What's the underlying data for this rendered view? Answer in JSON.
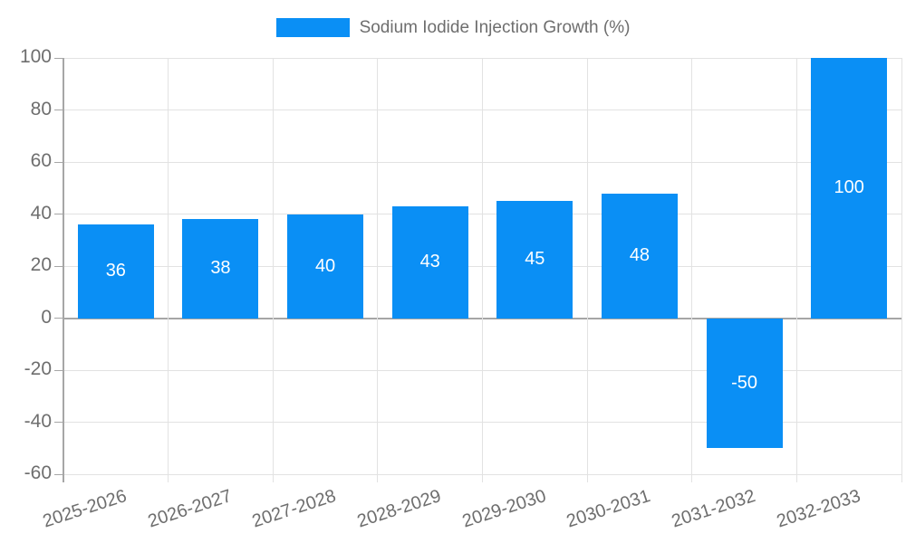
{
  "chart_data": {
    "type": "bar",
    "title": "Sodium Iodide Injection Growth (%)",
    "categories": [
      "2025-2026",
      "2026-2027",
      "2027-2028",
      "2028-2029",
      "2029-2030",
      "2030-2031",
      "2031-2032",
      "2032-2033"
    ],
    "values": [
      36,
      38,
      40,
      43,
      45,
      48,
      -50,
      100
    ],
    "bar_labels": [
      "36",
      "38",
      "40",
      "43",
      "45",
      "48",
      "-50",
      "100"
    ],
    "xlabel": "",
    "ylabel": "",
    "ylim": [
      -60,
      100
    ],
    "yticks": [
      -60,
      -40,
      -20,
      0,
      20,
      40,
      60,
      80,
      100
    ],
    "grid": "both",
    "legend_position": "top",
    "x_label_rotation_deg": -18
  },
  "legend": {
    "label": "Sodium Iodide Injection Growth (%)"
  },
  "colors": {
    "bar": "#0a8ff5",
    "bar_label_text": "#ffffff",
    "axis_line": "#a6a6a6",
    "zero_line": "#a6a6a6",
    "grid_line": "#e2e2e2",
    "tick_label_text": "#6e6e6e",
    "legend_text": "#6e6e6e",
    "background": "#ffffff"
  }
}
